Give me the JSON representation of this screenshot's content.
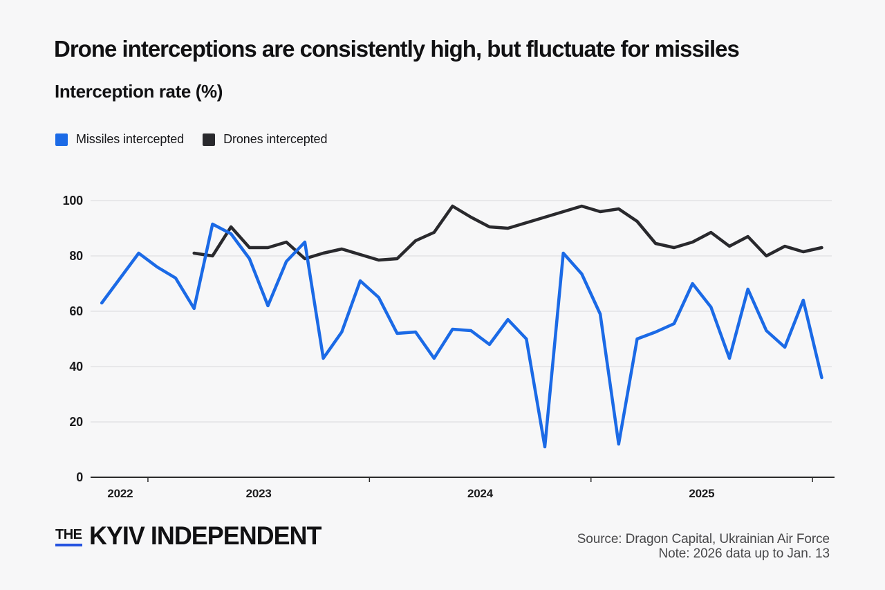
{
  "header": {
    "title": "Drone interceptions are consistently high, but fluctuate for missiles",
    "subtitle": "Interception rate (%)"
  },
  "legend": {
    "missiles": {
      "label": "Missiles intercepted"
    },
    "drones": {
      "label": "Drones intercepted"
    }
  },
  "colors": {
    "background": "#f7f7f8",
    "missiles_blue": "#1b6ae6",
    "drones_black": "#29292d",
    "grid": "#e3e3e5",
    "axis": "#2b2b2b",
    "logo_blue": "#2553e0"
  },
  "chart_data": {
    "type": "line",
    "title": "Drone interceptions are consistently high, but fluctuate for missiles",
    "ylabel": "Interception rate (%)",
    "ylim": [
      0,
      100
    ],
    "y_ticks": [
      0,
      20,
      40,
      60,
      80,
      100
    ],
    "grid": "horizontal",
    "legend_position": "top-left",
    "x": [
      "Oct 2022",
      "Nov 2022",
      "Dec 2022",
      "Jan 2023",
      "Feb 2023",
      "Mar 2023",
      "Apr 2023",
      "May 2023",
      "Jun 2023",
      "Jul 2023",
      "Aug 2023",
      "Sep 2023",
      "Oct 2023",
      "Nov 2023",
      "Dec 2023",
      "Jan 2024",
      "Feb 2024",
      "Mar 2024",
      "Apr 2024",
      "May 2024",
      "Jun 2024",
      "Jul 2024",
      "Aug 2024",
      "Sep 2024",
      "Oct 2024",
      "Nov 2024",
      "Dec 2024",
      "Jan 2025",
      "Feb 2025",
      "Mar 2025",
      "Apr 2025",
      "May 2025",
      "Jun 2025",
      "Jul 2025",
      "Aug 2025",
      "Sep 2025",
      "Oct 2025",
      "Nov 2025",
      "Dec 2025",
      "Jan 2026"
    ],
    "series": [
      {
        "name": "Missiles intercepted",
        "color": "#1b6ae6",
        "start_index": 0,
        "values": [
          63,
          72,
          81,
          76,
          72,
          61,
          91.5,
          88,
          79,
          62,
          78,
          85,
          43,
          52.5,
          71,
          65,
          52,
          52.5,
          43,
          53.5,
          53,
          48,
          57,
          50,
          11,
          81,
          73.5,
          59,
          12,
          50,
          52.5,
          55.5,
          70,
          61.5,
          43,
          68,
          53,
          47,
          64,
          36
        ]
      },
      {
        "name": "Drones intercepted",
        "color": "#29292d",
        "start_index": 5,
        "values": [
          81,
          80,
          90.5,
          83,
          83,
          85,
          79,
          81,
          82.5,
          80.5,
          78.5,
          79,
          85.5,
          88.5,
          98,
          94,
          90.5,
          90,
          92,
          94,
          96,
          98,
          96,
          97,
          92.5,
          84.5,
          83,
          85,
          88.5,
          83.5,
          87,
          80,
          83.5,
          81.5,
          83
        ]
      }
    ],
    "x_axis": {
      "year_boundary_ticks": [
        2.5,
        14.5,
        26.5,
        38.5
      ],
      "year_labels": [
        {
          "label": "2022",
          "k": 1.0
        },
        {
          "label": "2023",
          "k": 8.5
        },
        {
          "label": "2024",
          "k": 20.5
        },
        {
          "label": "2025",
          "k": 32.5
        }
      ]
    }
  },
  "footer": {
    "logo_the": "THE",
    "logo_main": "KYIV INDEPENDENT",
    "source": "Source: Dragon Capital, Ukrainian Air Force",
    "note": "Note: 2026 data up to Jan. 13"
  }
}
